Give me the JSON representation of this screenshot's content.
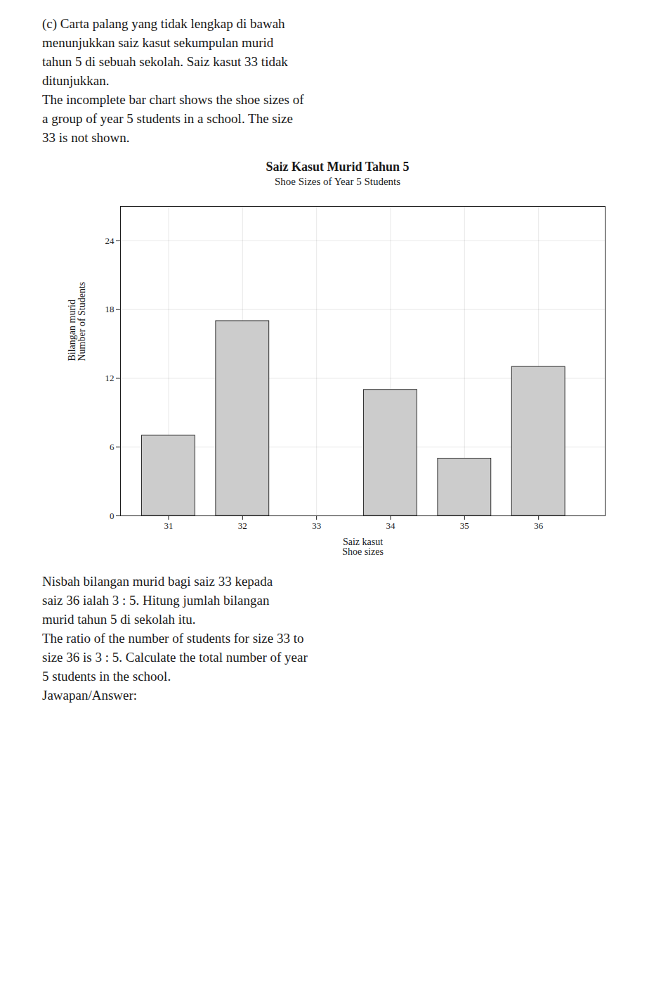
{
  "chart_data": {
    "type": "bar",
    "title": "Saiz Kasut Murid Tahun 5",
    "subtitle": "Shoe Sizes of Year 5 Students",
    "xlabel": [
      "Saiz kasut",
      "Shoe sizes"
    ],
    "ylabel": [
      "Bilangan murid",
      "Number of Students"
    ],
    "x": [
      31,
      32,
      33,
      34,
      35,
      36
    ],
    "values": [
      7,
      17,
      null,
      11,
      5,
      13
    ],
    "color": "#cccccc",
    "xlim": [
      30.35,
      36.9
    ],
    "xticks": [
      31,
      32,
      33,
      34,
      35,
      36
    ],
    "ylim": [
      0,
      27
    ],
    "yticks": [
      0,
      6,
      12,
      18,
      24
    ],
    "grid": true,
    "text_above": [
      "(c) Carta palang yang tidak lengkap di bawah",
      "menunjukkan saiz kasut sekumpulan murid",
      "tahun 5 di sebuah sekolah. Saiz kasut 33 tidak",
      "ditunjukkan.",
      "The incomplete bar chart shows the shoe sizes of",
      "a group of year 5 students in a school. The size",
      "33 is not shown."
    ],
    "text_below": [
      "Nisbah bilangan murid bagi saiz 33 kepada",
      "saiz 36 ialah 3 : 5. Hitung jumlah bilangan",
      "murid tahun 5 di sekolah itu.",
      "The ratio of the number of students for size 33 to",
      "size 36 is 3 : 5. Calculate the total number of year",
      "5 students in the school.",
      "Jawapan/Answer:"
    ]
  }
}
